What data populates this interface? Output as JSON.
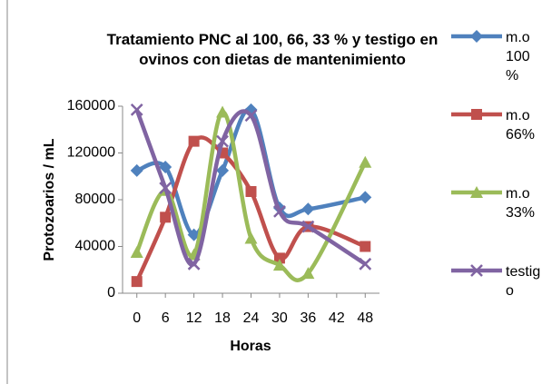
{
  "chart_data": {
    "type": "line",
    "title": "Tratamiento PNC al 100, 66, 33 % y testigo en ovinos con dietas de mantenimiento",
    "x_label": "Horas",
    "y_label": "Protozoarios / mL",
    "x": [
      0,
      6,
      12,
      18,
      24,
      30,
      36,
      48
    ],
    "xlim": [
      -3,
      51
    ],
    "xticks": [
      0,
      6,
      12,
      18,
      24,
      30,
      36,
      42,
      48
    ],
    "ylim": [
      0,
      160000
    ],
    "yticks": [
      0,
      40000,
      80000,
      120000,
      160000
    ],
    "smooth": true,
    "legend": "right",
    "series": [
      {
        "name": "m.o 100 %",
        "color": "#4f81bd",
        "marker": "diamond",
        "values": [
          105000,
          108000,
          50000,
          105000,
          157000,
          73000,
          72000,
          82000
        ]
      },
      {
        "name": "m.o 66%",
        "color": "#c0504d",
        "marker": "square",
        "values": [
          10000,
          65000,
          130000,
          120000,
          87000,
          30000,
          57000,
          40000
        ]
      },
      {
        "name": "m.o 33%",
        "color": "#9bbb59",
        "marker": "triangle",
        "values": [
          35000,
          88000,
          33000,
          155000,
          47000,
          24000,
          17000,
          112000
        ]
      },
      {
        "name": "testigo",
        "color": "#8064a2",
        "marker": "x",
        "values": [
          157000,
          90000,
          25000,
          130000,
          152000,
          70000,
          57000,
          25000
        ]
      }
    ]
  }
}
